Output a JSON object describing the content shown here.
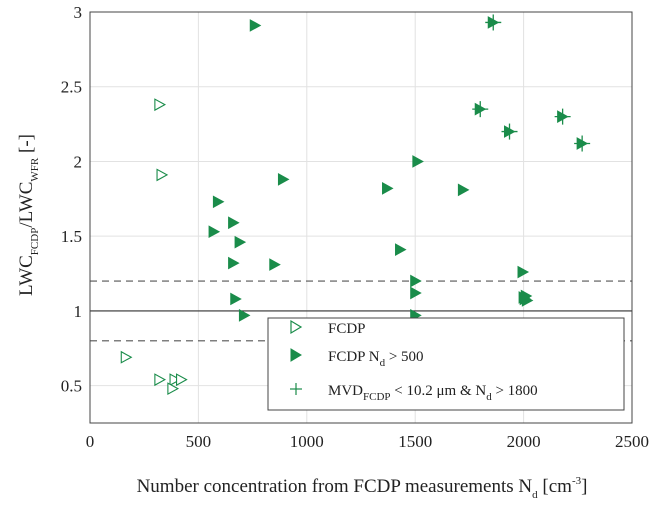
{
  "chart_data": {
    "type": "scatter",
    "xlabel_main": "Number concentration from FCDP measurements N",
    "xlabel_sub": "d",
    "xlabel_unit_pre": " [cm",
    "xlabel_unit_sup": "-3",
    "xlabel_unit_post": "]",
    "ylabel_pre": "LWC",
    "ylabel_sub1": "FCDP",
    "ylabel_mid": "/LWC",
    "ylabel_sub2": "WFR",
    "ylabel_post": " [-]",
    "xlim": [
      0,
      2500
    ],
    "ylim": [
      0.25,
      3
    ],
    "xticks": [
      0,
      500,
      1000,
      1500,
      2000,
      2500
    ],
    "yticks": [
      0.5,
      1,
      1.5,
      2,
      2.5,
      3
    ],
    "xtick_labels": [
      "0",
      "500",
      "1000",
      "1500",
      "2000",
      "2500"
    ],
    "ytick_labels": [
      "0.5",
      "1",
      "1.5",
      "2",
      "2.5",
      "3"
    ],
    "grid": true,
    "reference_lines": [
      {
        "y": 1.0,
        "style": "solid"
      },
      {
        "y": 1.2,
        "style": "dashed"
      },
      {
        "y": 0.8,
        "style": "dashed"
      }
    ],
    "legend_position": "bottom-right",
    "legend": [
      {
        "label": "FCDP",
        "marker": "triangle-right-open"
      },
      {
        "label_pre": "FCDP N",
        "label_sub": "d",
        "label_post": " > 500",
        "marker": "triangle-right-filled"
      },
      {
        "label_pre": "MVD",
        "label_sub": "FCDP",
        "label_mid": " < 10.2 μm & N",
        "label_sub2": "d",
        "label_post": " > 1800",
        "marker": "plus"
      }
    ],
    "colors": {
      "series": "#1a8c4a",
      "grid": "#e2e2e2",
      "refline": "#555555"
    },
    "series": [
      {
        "name": "FCDP",
        "marker": "triangle-right-open",
        "x": [
          320,
          330,
          165,
          320,
          390,
          420,
          380
        ],
        "y": [
          2.38,
          1.91,
          0.69,
          0.54,
          0.54,
          0.54,
          0.48
        ]
      },
      {
        "name": "FCDP Nd > 500",
        "marker": "triangle-right-filled",
        "x": [
          760,
          590,
          570,
          660,
          690,
          890,
          850,
          660,
          670,
          710,
          1370,
          1430,
          1500,
          1510,
          1720,
          1500,
          1500,
          1995,
          2000,
          2005,
          2015,
          2010
        ],
        "y": [
          2.91,
          1.73,
          1.53,
          1.59,
          1.46,
          1.88,
          1.31,
          1.32,
          1.08,
          0.97,
          1.82,
          1.41,
          1.2,
          2.0,
          1.81,
          1.12,
          0.97,
          1.26,
          1.09,
          1.08,
          1.07,
          1.1
        ]
      },
      {
        "name": "MVD FCDP < 10.2 μm & Nd > 1800",
        "marker": "plus",
        "x": [
          1860,
          1800,
          1935,
          2180,
          2270
        ],
        "y": [
          2.93,
          2.35,
          2.2,
          2.3,
          2.12
        ]
      }
    ]
  }
}
